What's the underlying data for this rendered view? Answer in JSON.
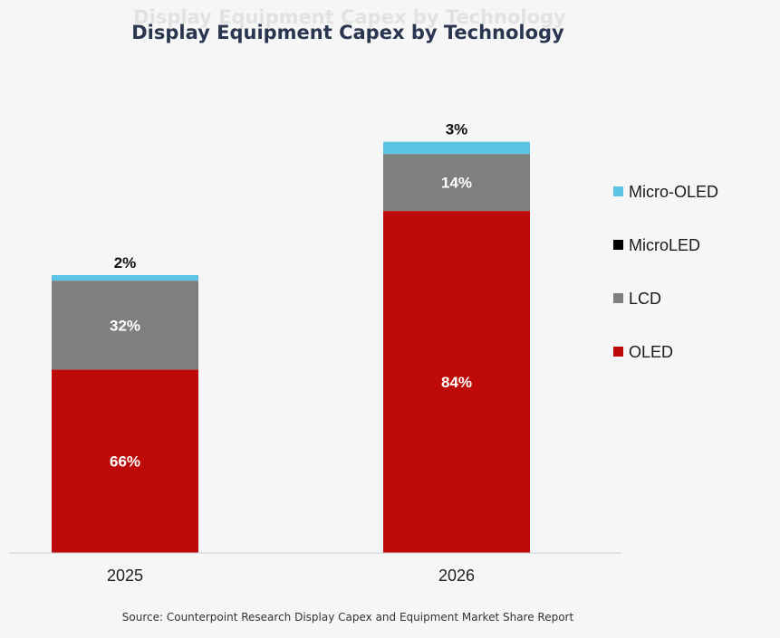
{
  "chart_data": {
    "type": "bar",
    "stacked": true,
    "title": "Display Equipment Capex by Technology",
    "categories": [
      "2025",
      "2026"
    ],
    "series": [
      {
        "name": "OLED",
        "color": "#bf0a0a",
        "values": [
          66,
          84
        ],
        "labels": [
          "66%",
          "84%"
        ]
      },
      {
        "name": "LCD",
        "color": "#7f7f7f",
        "values": [
          32,
          14
        ],
        "labels": [
          "32%",
          "14%"
        ]
      },
      {
        "name": "MicroLED",
        "color": "#000000",
        "values": [
          0,
          0
        ],
        "labels": [
          "",
          ""
        ]
      },
      {
        "name": "Micro-OLED",
        "color": "#5bc5e6",
        "values": [
          2,
          3
        ],
        "labels": [
          "2%",
          "3%"
        ]
      }
    ],
    "legend_order": [
      "Micro-OLED",
      "MicroLED",
      "LCD",
      "OLED"
    ],
    "legend_position": "right",
    "relative_total": [
      100,
      148
    ],
    "xlabel": "",
    "ylabel": "",
    "grid": false
  },
  "source": "Source: Counterpoint Research Display Capex and Equipment Market Share Report"
}
